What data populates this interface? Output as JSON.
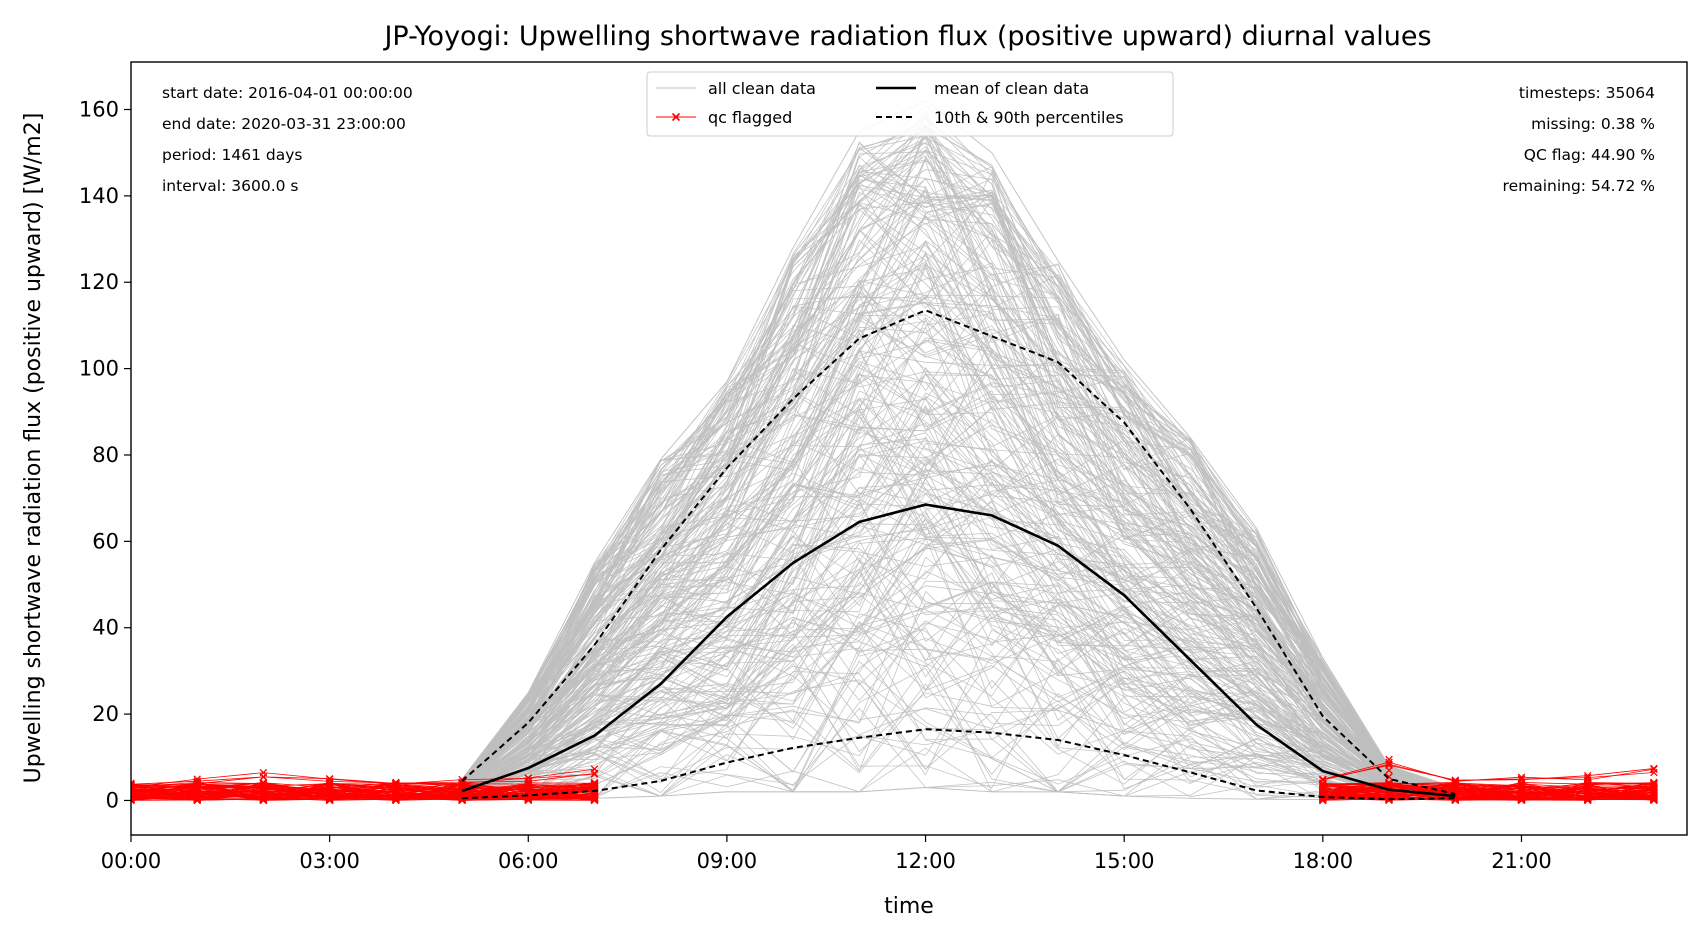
{
  "chart_data": {
    "type": "line",
    "title": "JP-Yoyogi: Upwelling shortwave radiation flux (positive upward) diurnal values",
    "xlabel": "time",
    "ylabel": "Upwelling shortwave radiation flux (positive upward) [W/m2]",
    "xlim": [
      0,
      23.5
    ],
    "ylim": [
      -8,
      171
    ],
    "x_ticks": [
      {
        "value": 0,
        "label": "00:00"
      },
      {
        "value": 3,
        "label": "03:00"
      },
      {
        "value": 6,
        "label": "06:00"
      },
      {
        "value": 9,
        "label": "09:00"
      },
      {
        "value": 12,
        "label": "12:00"
      },
      {
        "value": 15,
        "label": "15:00"
      },
      {
        "value": 18,
        "label": "18:00"
      },
      {
        "value": 21,
        "label": "21:00"
      }
    ],
    "y_ticks": [
      {
        "value": 0,
        "label": "0"
      },
      {
        "value": 20,
        "label": "20"
      },
      {
        "value": 40,
        "label": "40"
      },
      {
        "value": 60,
        "label": "60"
      },
      {
        "value": 80,
        "label": "80"
      },
      {
        "value": 100,
        "label": "100"
      },
      {
        "value": 120,
        "label": "120"
      },
      {
        "value": 140,
        "label": "140"
      },
      {
        "value": 160,
        "label": "160"
      }
    ],
    "grid": false,
    "legend_position": "top-center",
    "hours": [
      0,
      1,
      2,
      3,
      4,
      5,
      6,
      7,
      8,
      9,
      10,
      11,
      12,
      13,
      14,
      15,
      16,
      17,
      18,
      19,
      20,
      21,
      22,
      23
    ],
    "series": [
      {
        "name": "mean of clean data",
        "color": "#000000",
        "style": "solid",
        "x": [
          5,
          6,
          7,
          8,
          9,
          10,
          11,
          12,
          13,
          14,
          15,
          16,
          17,
          18,
          19,
          20
        ],
        "y": [
          2.2,
          7.5,
          15.0,
          27.0,
          42.5,
          55.0,
          64.5,
          68.5,
          66.0,
          59.0,
          47.5,
          32.5,
          17.5,
          6.8,
          2.5,
          1.0
        ]
      },
      {
        "name": "10th & 90th percentiles",
        "color": "#000000",
        "style": "dashed",
        "x": [
          5,
          6,
          7,
          8,
          9,
          10,
          11,
          12,
          13,
          14,
          15,
          16,
          17,
          18,
          19,
          20
        ],
        "y": [
          4.5,
          18.0,
          36.0,
          58.0,
          77.0,
          93.0,
          107.0,
          113.5,
          107.5,
          101.5,
          87.5,
          67.5,
          44.5,
          19.5,
          5.0,
          1.5
        ]
      },
      {
        "name": "10th percentile",
        "color": "#000000",
        "style": "dashed",
        "x": [
          5,
          6,
          7,
          8,
          9,
          10,
          11,
          12,
          13,
          14,
          15,
          16,
          17,
          18,
          19,
          20
        ],
        "y": [
          0.5,
          1.2,
          2.2,
          4.5,
          8.8,
          12.2,
          14.5,
          16.5,
          15.7,
          14.0,
          10.5,
          6.5,
          2.3,
          0.8,
          0.3,
          0.5
        ]
      },
      {
        "name": "all clean data",
        "color": "#bfbfbf",
        "style": "solid",
        "envelope_x": [
          5,
          6,
          7,
          8,
          9,
          10,
          11,
          12,
          13,
          14,
          15,
          16,
          17,
          18,
          19,
          20
        ],
        "envelope_max": [
          5,
          25,
          55,
          79,
          97,
          128,
          155,
          162,
          150,
          125,
          102,
          84,
          63,
          33,
          8,
          3
        ],
        "envelope_min": [
          0,
          0.5,
          0.5,
          1,
          2,
          2,
          2,
          3,
          2,
          2,
          1,
          0.5,
          0.3,
          0.2,
          0.2,
          0.2
        ]
      },
      {
        "name": "qc flagged",
        "color": "#ff0000",
        "style": "solid-x",
        "x": [
          0,
          1,
          2,
          3,
          4,
          5,
          6,
          7,
          18,
          19,
          20,
          21,
          22,
          23
        ],
        "max": [
          4,
          5,
          6.5,
          5.5,
          5,
          5,
          5.5,
          7.5,
          5,
          10,
          5.5,
          5.5,
          6,
          7.5
        ],
        "min": [
          0,
          0,
          0,
          0,
          0,
          0,
          0,
          0,
          0,
          0,
          0,
          0,
          0,
          0
        ]
      }
    ],
    "legend": [
      {
        "label": "all clean data",
        "key": "clean"
      },
      {
        "label": "mean of clean data",
        "key": "mean"
      },
      {
        "label": "qc flagged",
        "key": "qc"
      },
      {
        "label": "10th & 90th percentiles",
        "key": "pct"
      }
    ]
  },
  "stats_left": [
    "start date: 2016-04-01 00:00:00",
    "end date: 2020-03-31 23:00:00",
    "period: 1461 days",
    "interval: 3600.0 s"
  ],
  "stats_right": [
    "timesteps: 35064",
    "missing: 0.38 %",
    "QC flag: 44.90 %",
    "remaining: 54.72 %"
  ]
}
